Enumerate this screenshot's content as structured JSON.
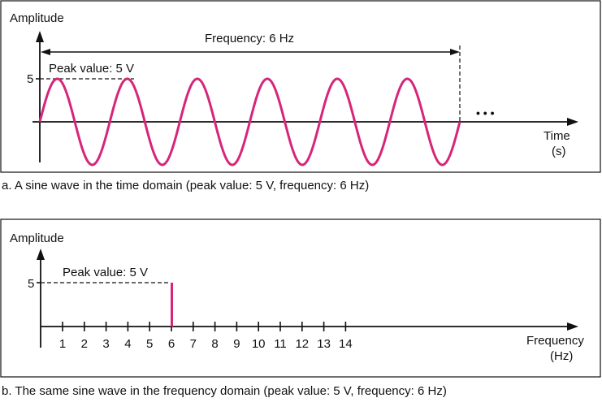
{
  "colors": {
    "signal": "#d6267a",
    "ink": "#111111"
  },
  "time_panel": {
    "y_axis_label": "Amplitude",
    "y_tick_label": "5",
    "peak_label": "Peak value: 5 V",
    "frequency_label": "Frequency: 6 Hz",
    "x_axis_label_line1": "Time",
    "x_axis_label_line2": "(s)",
    "continuation": "• • •",
    "caption": "a. A sine wave in the time domain (peak value: 5 V, frequency: 6 Hz)"
  },
  "freq_panel": {
    "y_axis_label": "Amplitude",
    "y_tick_label": "5",
    "peak_label": "Peak value: 5 V",
    "x_axis_label_line1": "Frequency",
    "x_axis_label_line2": "(Hz)",
    "caption": "b. The same sine wave in the frequency domain (peak value: 5 V, frequency: 6 Hz)"
  },
  "chart_data": [
    {
      "type": "line",
      "function": "sine",
      "peak_value": 5,
      "frequency_hz": 6,
      "cycles": 6,
      "ylabel": "Amplitude",
      "xlabel": "Time (s)"
    },
    {
      "type": "bar",
      "categories": [
        "1",
        "2",
        "3",
        "4",
        "5",
        "6",
        "7",
        "8",
        "9",
        "10",
        "11",
        "12",
        "13",
        "14"
      ],
      "values": [
        0,
        0,
        0,
        0,
        0,
        5,
        0,
        0,
        0,
        0,
        0,
        0,
        0,
        0
      ],
      "ylabel": "Amplitude",
      "xlabel": "Frequency (Hz)"
    }
  ]
}
